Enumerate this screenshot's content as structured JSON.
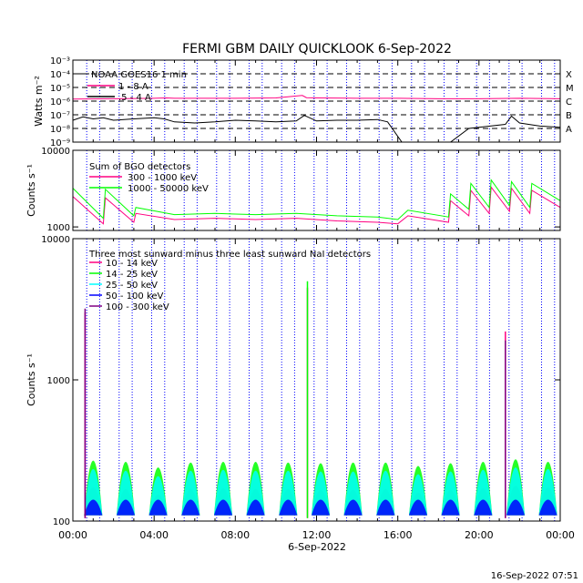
{
  "title": "FERMI GBM DAILY QUICKLOOK    6-Sep-2022",
  "footer_timestamp": "16-Sep-2022 07:51",
  "x_axis_label": "6-Sep-2022",
  "colors": {
    "magenta": "#ff0080",
    "green": "#00ff00",
    "cyan": "#00ffff",
    "blue": "#0000ff",
    "purple": "#800080",
    "black": "#000000",
    "orbit_lines": "#0000ff"
  },
  "chart_data": [
    {
      "type": "line",
      "panel": "goes",
      "ylabel": "Watts m⁻²",
      "yscale": "log",
      "ylim": [
        1e-09,
        0.001
      ],
      "ytick_labels": [
        "10⁻³",
        "10⁻⁴",
        "10⁻⁵",
        "10⁻⁶",
        "10⁻⁷",
        "10⁻⁸",
        "10⁻⁹"
      ],
      "flare_class_labels": [
        "X",
        "M",
        "C",
        "B",
        "A"
      ],
      "legend_title": "NOAA GOES16 1 min",
      "series": [
        {
          "name": "1 - 8 A",
          "color": "#ff0080",
          "x": [
            0,
            2,
            4,
            4.6,
            5,
            6,
            8,
            10,
            11.3,
            11.5,
            12,
            14,
            16,
            18,
            20,
            22,
            24
          ],
          "values": [
            1.4e-06,
            1.5e-06,
            1.6e-06,
            1.7e-06,
            1.6e-06,
            1.6e-06,
            1.6e-06,
            1.7e-06,
            2.6e-06,
            1.8e-06,
            1.7e-06,
            1.6e-06,
            1.6e-06,
            1.5e-06,
            1.5e-06,
            1.6e-06,
            1.5e-06
          ]
        },
        {
          "name": ".5 - 4 A",
          "color": "#000000",
          "x": [
            0,
            0.5,
            1,
            1.5,
            2,
            3,
            4,
            4.5,
            5,
            6,
            7,
            8,
            9,
            10,
            11,
            11.4,
            12,
            13,
            14,
            15,
            15.5,
            16.2,
            18.6,
            19.5,
            20,
            21.3,
            21.6,
            22,
            23,
            24
          ],
          "values": [
            4e-08,
            7e-08,
            5e-08,
            6e-08,
            4e-08,
            5e-08,
            6e-08,
            5e-08,
            3e-08,
            2.5e-08,
            3e-08,
            4e-08,
            3.5e-08,
            3e-08,
            3.5e-08,
            9e-08,
            3.5e-08,
            4e-08,
            4e-08,
            4.5e-08,
            3e-08,
            1e-09,
            1e-09,
            1e-08,
            1.2e-08,
            2e-08,
            8e-08,
            2.5e-08,
            1.5e-08,
            1.2e-08
          ]
        }
      ]
    },
    {
      "type": "line",
      "panel": "bgo",
      "ylabel": "Counts s⁻¹",
      "yscale": "log",
      "ylim": [
        900,
        10000
      ],
      "ytick_labels": [
        "10000",
        "1000"
      ],
      "legend_title": "Sum of BGO detectors",
      "series": [
        {
          "name": "300 - 1000 keV",
          "color": "#ff0080",
          "x": [
            0,
            1.5,
            1.6,
            3,
            3.1,
            5,
            7,
            9,
            11,
            13,
            15,
            16,
            16.5,
            18.5,
            18.6,
            19.5,
            19.6,
            20.5,
            20.6,
            21.5,
            21.6,
            22.5,
            22.6,
            24
          ],
          "values": [
            2500,
            1100,
            2400,
            1150,
            1500,
            1250,
            1300,
            1250,
            1300,
            1200,
            1150,
            1100,
            1400,
            1150,
            2200,
            1400,
            3000,
            1500,
            3300,
            1600,
            3200,
            1500,
            3000,
            1800
          ]
        },
        {
          "name": "1000 - 50000 keV",
          "color": "#00ff00",
          "x": [
            0,
            1.5,
            1.6,
            3,
            3.1,
            5,
            7,
            9,
            11,
            13,
            15,
            16,
            16.5,
            18.5,
            18.6,
            19.5,
            19.6,
            20.5,
            20.6,
            21.5,
            21.6,
            22.5,
            22.6,
            24
          ],
          "values": [
            3200,
            1300,
            3100,
            1400,
            1800,
            1450,
            1500,
            1450,
            1500,
            1400,
            1350,
            1250,
            1650,
            1350,
            2700,
            1700,
            3700,
            1800,
            4100,
            1900,
            3900,
            1800,
            3700,
            2200
          ]
        }
      ]
    },
    {
      "type": "line",
      "panel": "nai",
      "ylabel": "Counts s⁻¹",
      "xlabel": "6-Sep-2022",
      "yscale": "log",
      "ylim": [
        100,
        10000
      ],
      "ytick_labels": [
        "10000",
        "1000",
        "100"
      ],
      "xlim": [
        0,
        24
      ],
      "xtick_labels": [
        "00:00",
        "04:00",
        "08:00",
        "12:00",
        "16:00",
        "20:00",
        "00:00"
      ],
      "legend_title": "Three most sunward minus three least sunward NaI detectors",
      "orbit_pass_centers_hours": [
        1.0,
        2.6,
        4.2,
        5.8,
        7.4,
        9.0,
        10.6,
        12.2,
        13.8,
        15.4,
        17.0,
        18.6,
        20.2,
        21.8,
        23.4
      ],
      "orbit_peak_counts_green": [
        500,
        480,
        400,
        470,
        480,
        480,
        470,
        460,
        470,
        470,
        420,
        460,
        480,
        520,
        480
      ],
      "orbit_peak_counts_cyan": [
        380,
        360,
        300,
        360,
        370,
        360,
        360,
        350,
        350,
        360,
        320,
        350,
        370,
        400,
        380
      ],
      "flare_spikes": [
        {
          "x": 0.6,
          "magenta": 3000,
          "purple": 3200
        },
        {
          "x": 11.55,
          "green": 5000,
          "magenta": 4500
        },
        {
          "x": 21.3,
          "magenta": 2200,
          "purple": 1900
        }
      ],
      "series": [
        {
          "name": "10 - 14 keV",
          "color": "#ff0080"
        },
        {
          "name": "14 - 25 keV",
          "color": "#00ff00"
        },
        {
          "name": "25 - 50 keV",
          "color": "#00ffff"
        },
        {
          "name": "50 - 100 keV",
          "color": "#0000ff"
        },
        {
          "name": "100 - 300 keV",
          "color": "#800080"
        }
      ]
    }
  ]
}
